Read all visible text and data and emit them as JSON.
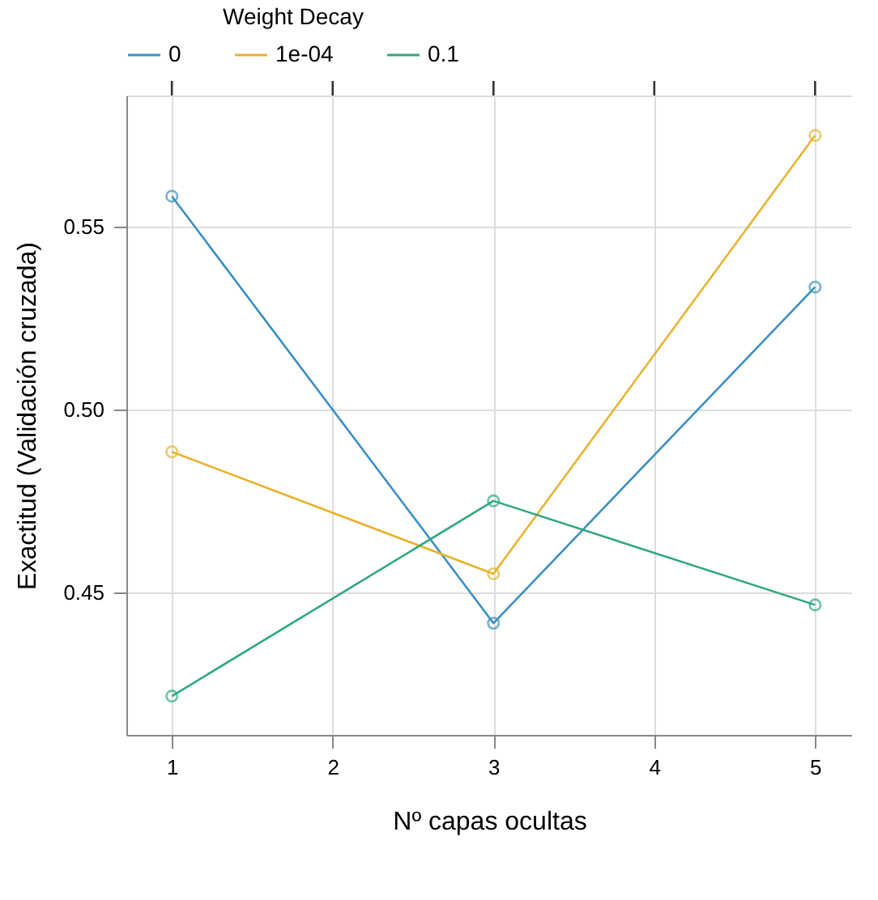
{
  "chart_data": {
    "type": "line",
    "xlabel": "Nº capas ocultas",
    "ylabel": "Exactitud (Validación cruzada)",
    "legend_title": "Weight Decay",
    "x": [
      1,
      3,
      5
    ],
    "series": [
      {
        "name": "0",
        "color": "#3b8fc4",
        "values": [
          0.5582,
          0.4416,
          0.5334
        ]
      },
      {
        "name": "1e-04",
        "color": "#e8b32e",
        "values": [
          0.4884,
          0.4551,
          0.5748
        ]
      },
      {
        "name": "0.1",
        "color": "#2fa882",
        "values": [
          0.4217,
          0.475,
          0.4466
        ]
      }
    ],
    "xlim": [
      0.717,
      5.23
    ],
    "xticks": [
      1,
      2,
      3,
      4,
      5
    ],
    "ylim": [
      0.4111,
      0.5857
    ],
    "yticks": [
      0.45,
      {
        "value": 0.5,
        "label": "0.50"
      },
      0.55
    ],
    "grid": true,
    "legend": "top",
    "marker": "circle",
    "line_style": "solid"
  }
}
